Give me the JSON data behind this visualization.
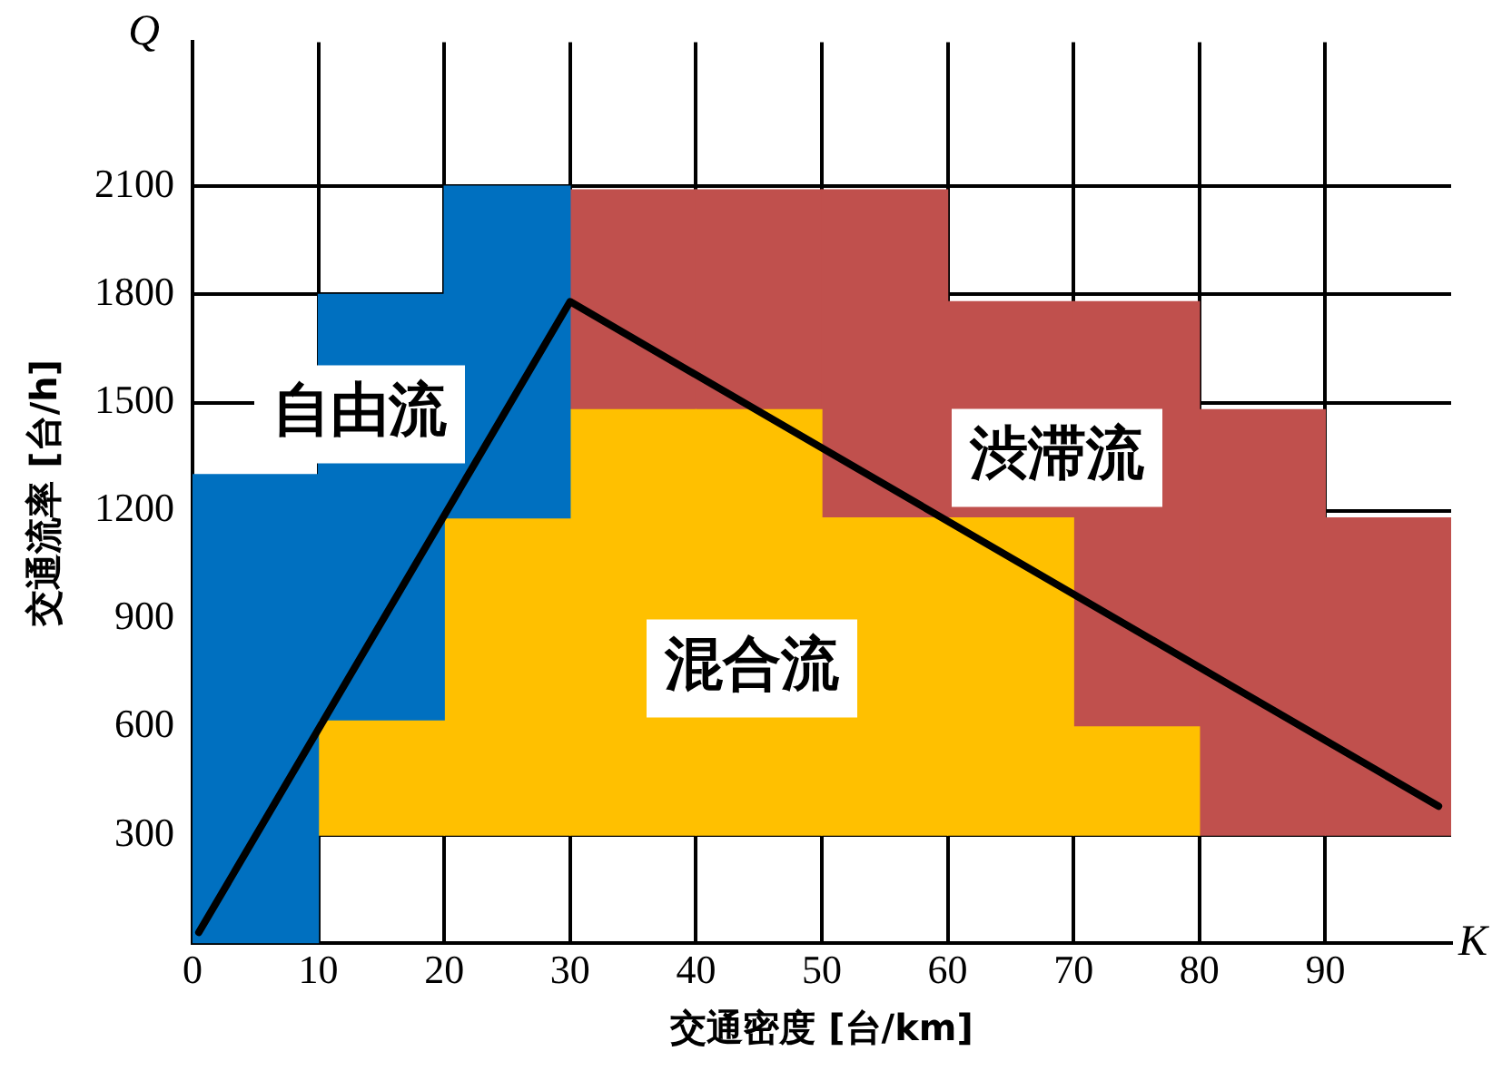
{
  "chart_data": {
    "type": "bar",
    "xlabel": "交通密度 [台/km]",
    "ylabel": "交通流率 [台/h]",
    "annotations": [
      "Q",
      "K"
    ],
    "xlim": [
      0,
      100
    ],
    "xticks": [
      0,
      10,
      20,
      30,
      40,
      50,
      60,
      70,
      80,
      90
    ],
    "ylim": [
      0,
      2500
    ],
    "yticks": [
      300,
      600,
      900,
      1200,
      1500,
      1800,
      2100
    ],
    "grid": true,
    "legend": false,
    "series": [
      {
        "name": "自由流",
        "color": "#0070c0",
        "x": [
          5,
          15,
          25
        ],
        "values": [
          1300,
          1180,
          920
        ],
        "base": [
          0,
          620,
          1180
        ]
      },
      {
        "name": "混合流",
        "color": "#ffc000",
        "x": [
          15,
          25,
          35,
          45,
          55,
          65,
          75
        ],
        "values": [
          320,
          880,
          1180,
          1180,
          880,
          880,
          300
        ],
        "base": [
          300,
          300,
          300,
          300,
          300,
          300,
          300
        ]
      },
      {
        "name": "渋滞流",
        "color": "#c0504d",
        "x": [
          35,
          45,
          55,
          65,
          75,
          85,
          95
        ],
        "values": [
          610,
          610,
          910,
          600,
          1180,
          1180,
          880
        ],
        "base": [
          1480,
          1480,
          1180,
          1180,
          600,
          300,
          300
        ]
      },
      {
        "type": "line",
        "color": "#000000",
        "x": [
          0.5,
          30,
          99
        ],
        "values": [
          30,
          1780,
          380
        ]
      }
    ]
  }
}
